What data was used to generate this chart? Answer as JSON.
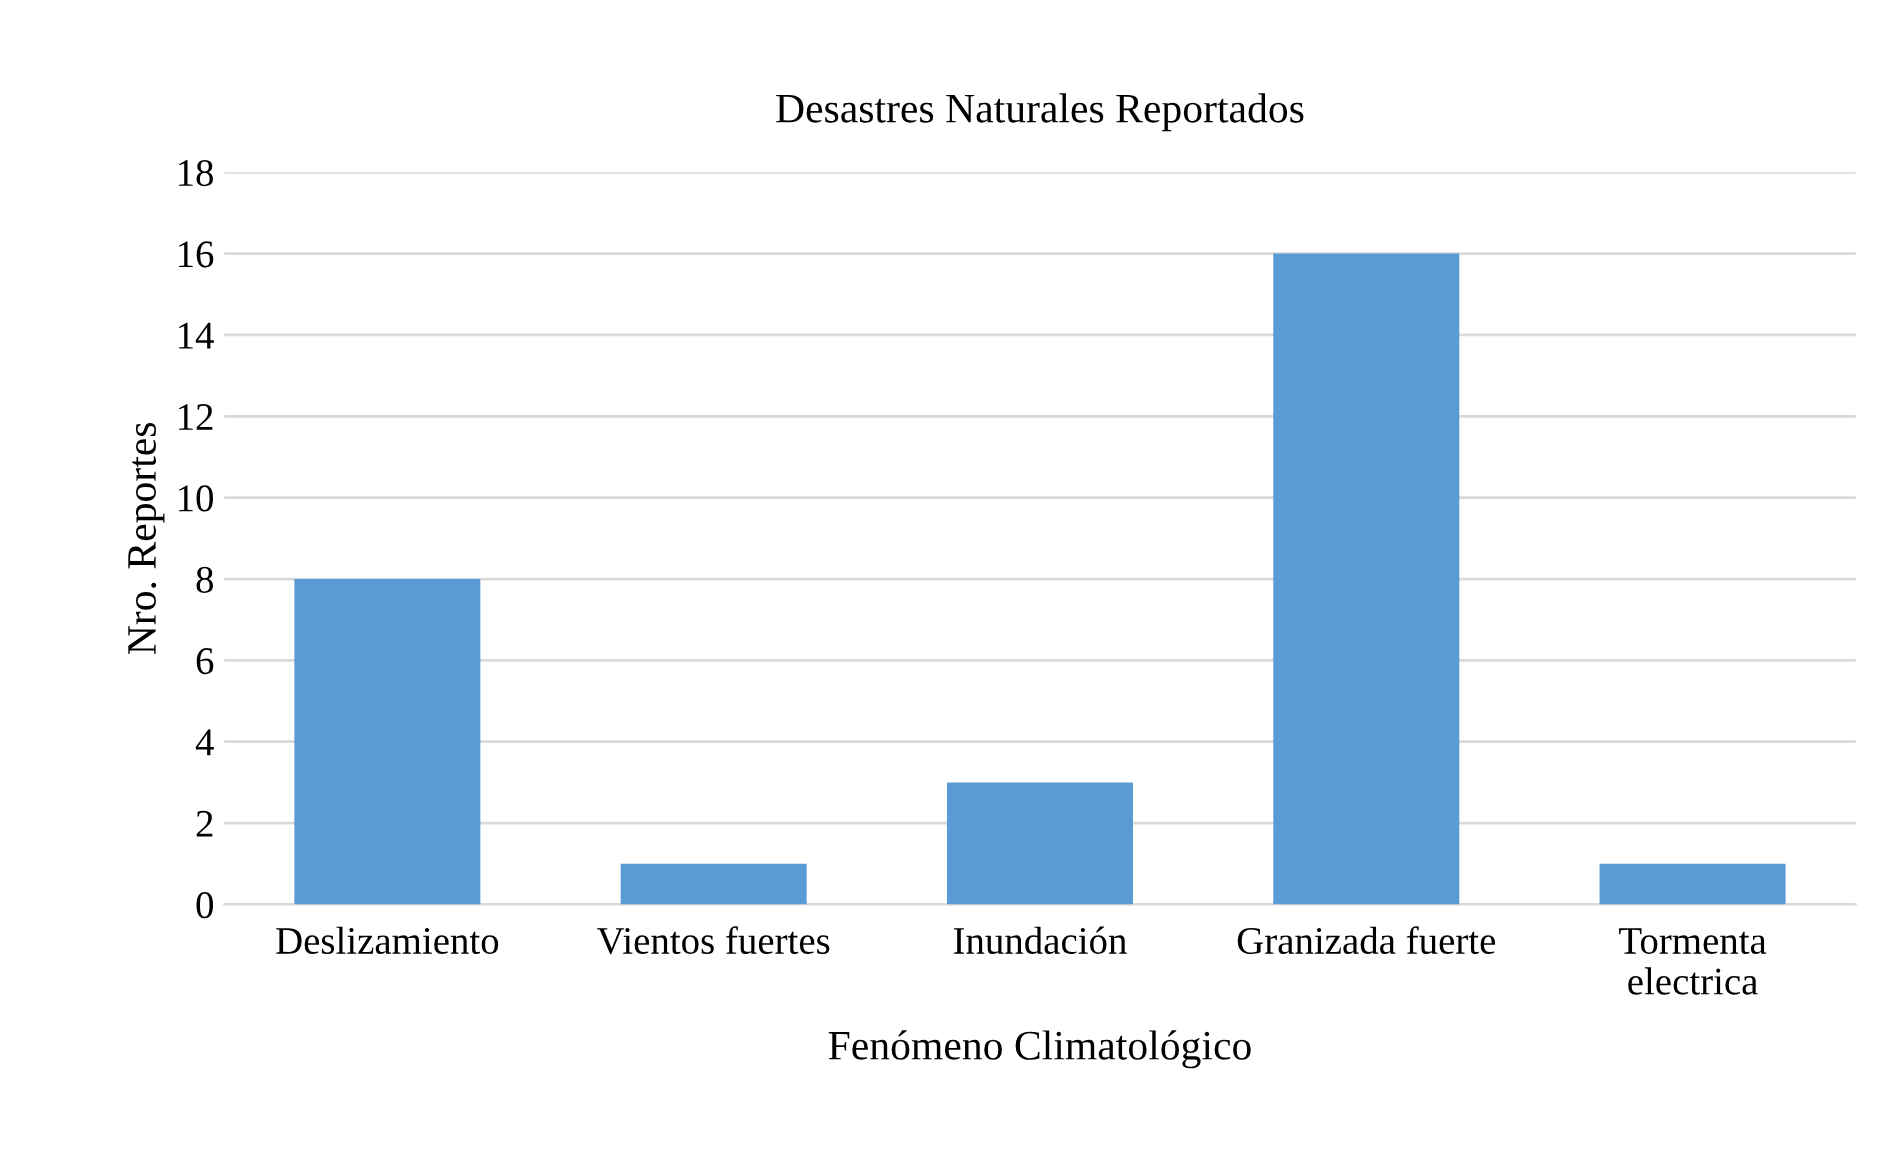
{
  "chart_data": {
    "type": "bar",
    "title": "Desastres Naturales Reportados",
    "xlabel": "Fenómeno Climatológico",
    "ylabel": "Nro. Reportes",
    "categories": [
      "Deslizamiento",
      "Vientos fuertes",
      "Inundación",
      "Granizada fuerte",
      "Tormenta electrica"
    ],
    "values": [
      8,
      1,
      3,
      16,
      1
    ],
    "color": "#5b9bd5",
    "ylim": [
      0,
      18
    ],
    "yticks": [
      0,
      2,
      4,
      6,
      8,
      10,
      12,
      14,
      16,
      18
    ],
    "grid": "y",
    "legend": false
  }
}
